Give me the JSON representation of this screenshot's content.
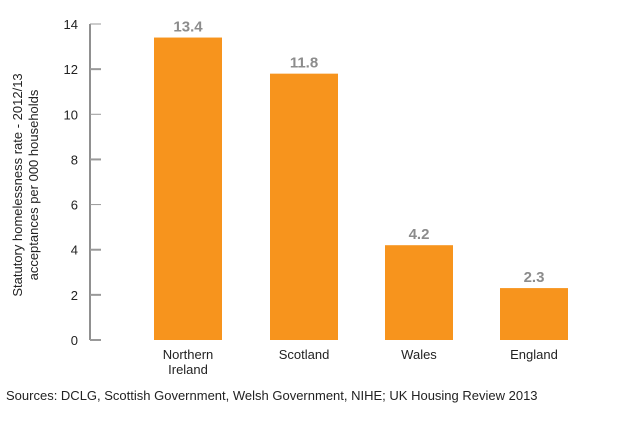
{
  "chart_data": {
    "type": "bar",
    "categories": [
      [
        "Northern",
        "Ireland"
      ],
      [
        "Scotland"
      ],
      [
        "Wales"
      ],
      [
        "England"
      ]
    ],
    "values": [
      13.4,
      11.8,
      4.2,
      2.3
    ],
    "data_labels": [
      "13.4",
      "11.8",
      "4.2",
      "2.3"
    ],
    "ylabel": [
      "Statutory homelessness rate - 2012/13",
      "acceptances per 000 households"
    ],
    "xlabel": "",
    "ylim": [
      0,
      14
    ],
    "yticks": [
      0,
      2,
      4,
      6,
      8,
      10,
      12,
      14
    ],
    "grid": false,
    "bar_color": "#f7941d",
    "label_color": "#8c8c8c"
  },
  "source": "Sources: DCLG, Scottish Government, Welsh Government, NIHE; UK Housing Review 2013"
}
